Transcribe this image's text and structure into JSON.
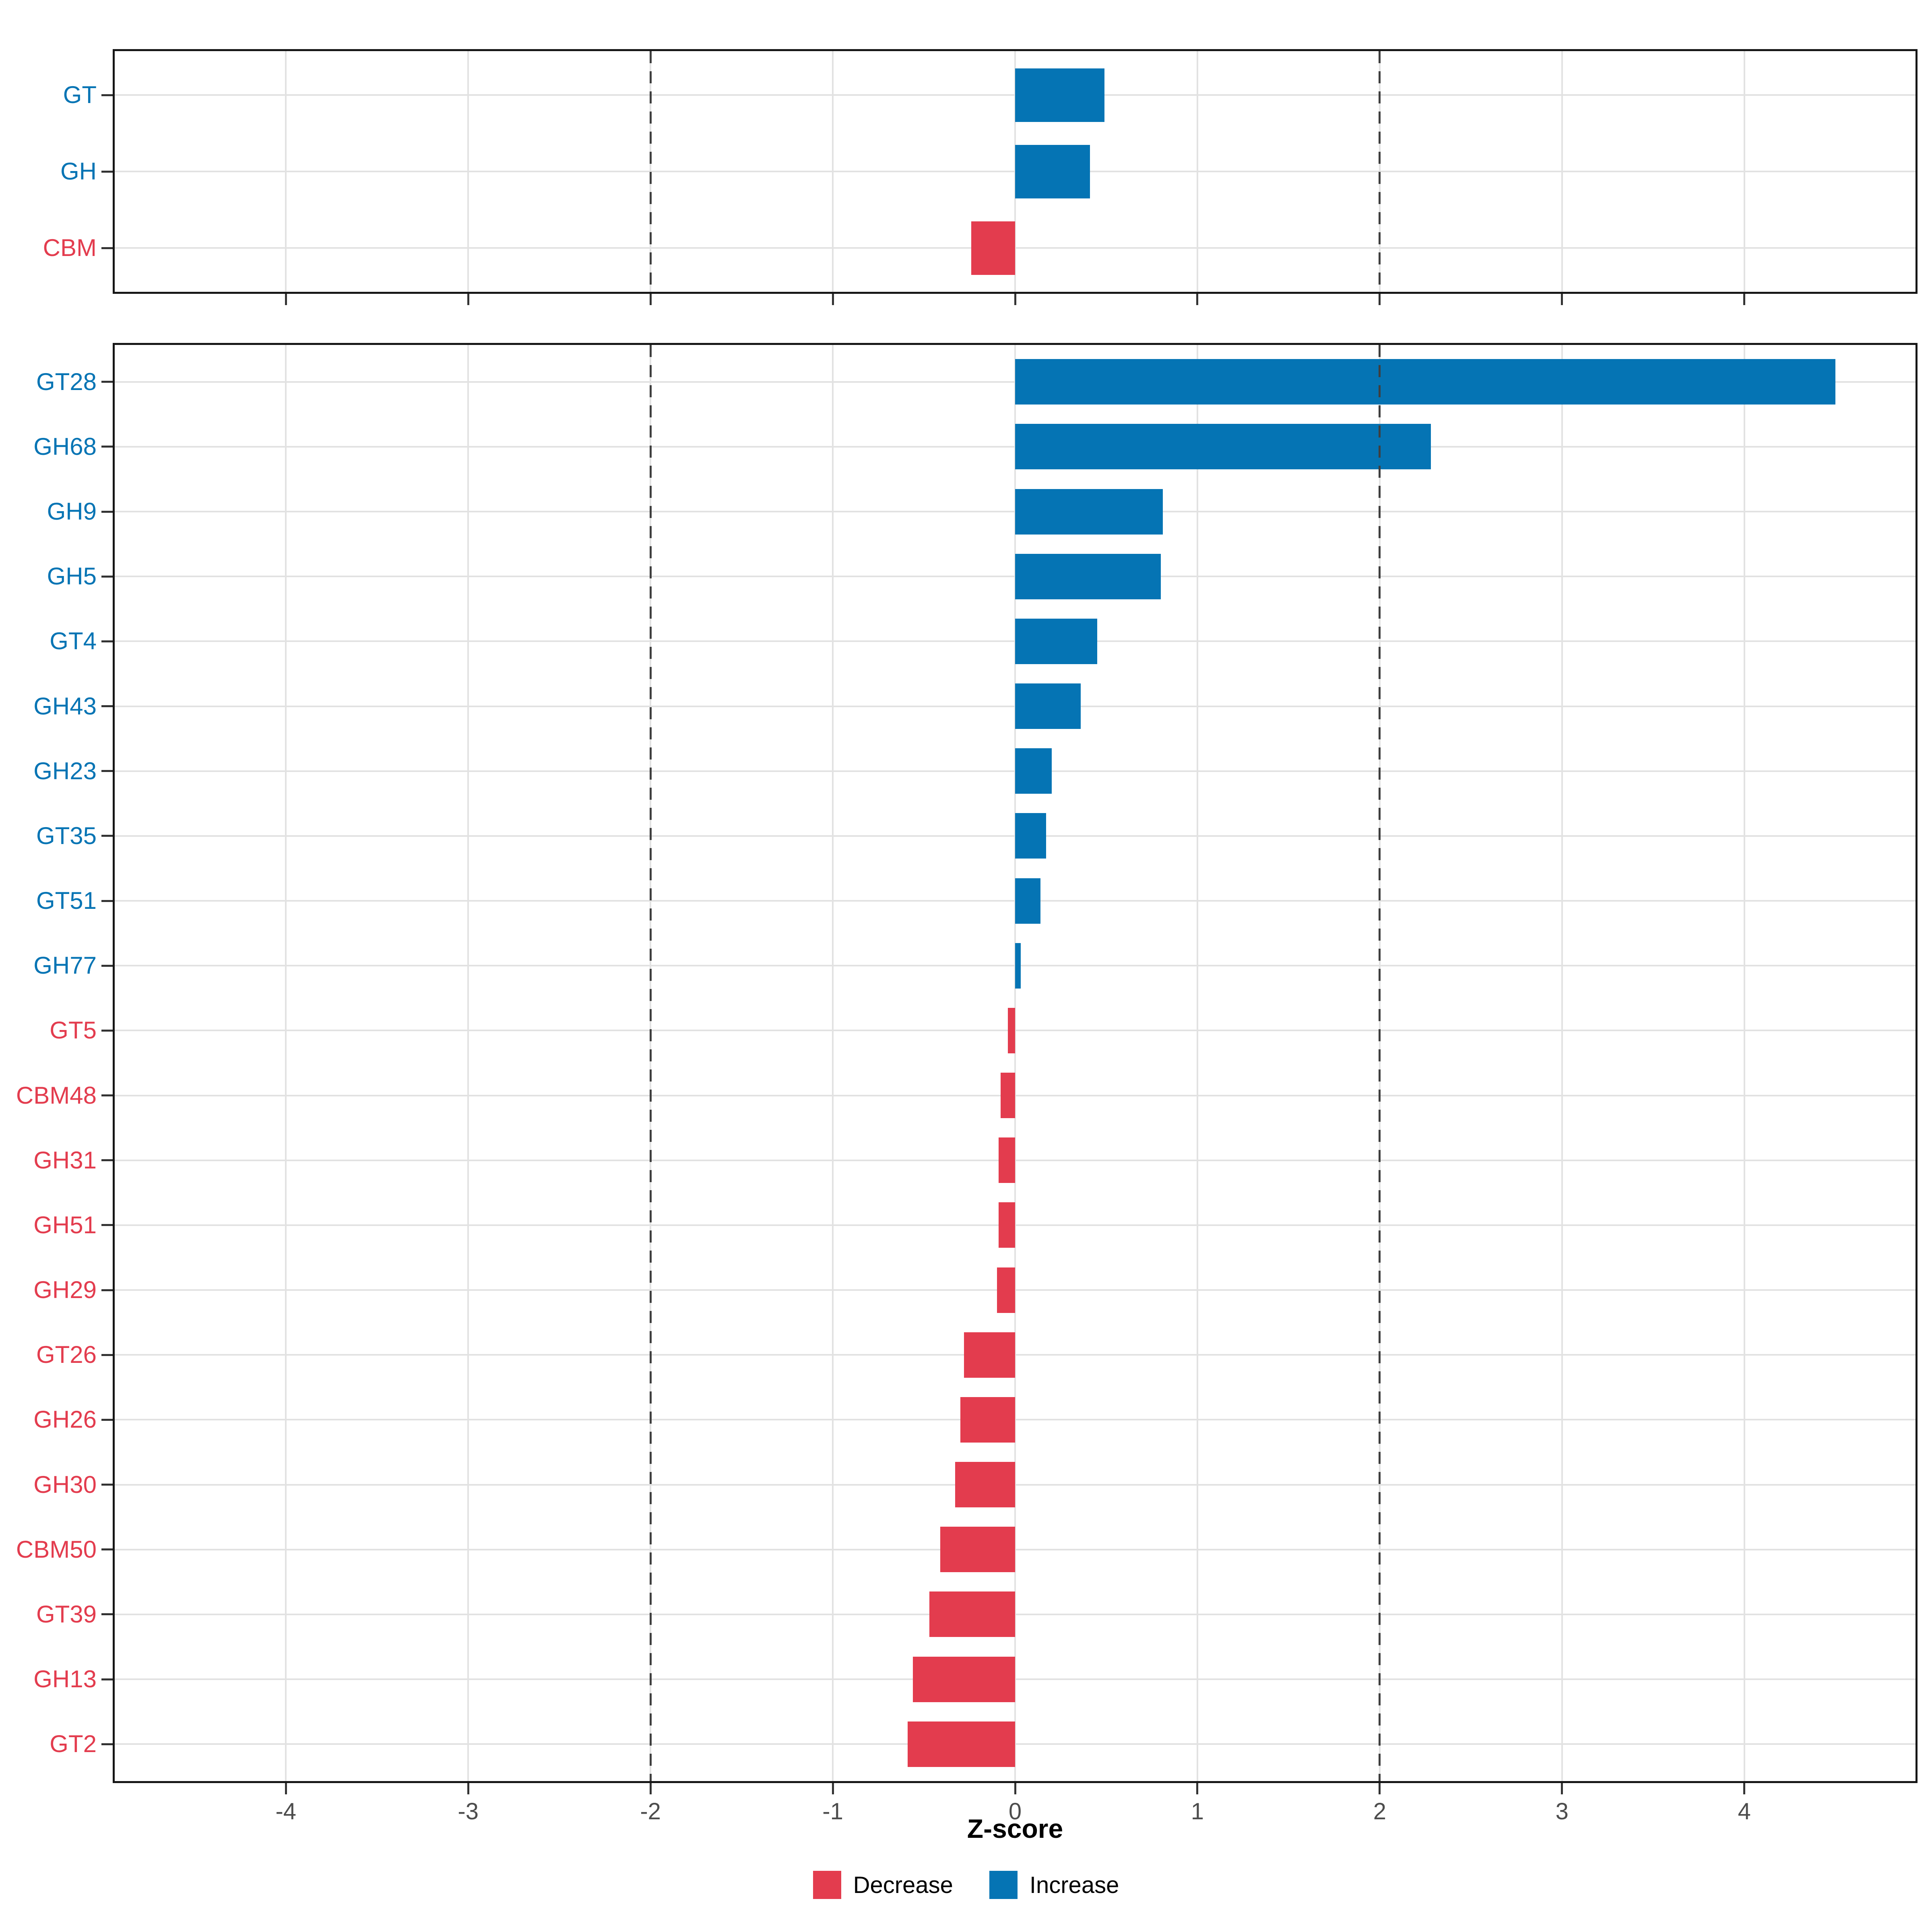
{
  "axis": {
    "xlabel": "Z-score",
    "tick_values": [
      -4,
      -3,
      -2,
      -1,
      0,
      1,
      2,
      3,
      4
    ],
    "tick_labels": [
      "-4",
      "-3",
      "-2",
      "-1",
      "0",
      "1",
      "2",
      "3",
      "4"
    ],
    "xlim": [
      -4.95,
      4.95
    ],
    "dashed_lines": [
      -2,
      2
    ],
    "tick_label_color": "#4D4D4D"
  },
  "legend": {
    "items": [
      {
        "label": "Decrease",
        "color": "#E33C4E"
      },
      {
        "label": "Increase",
        "color": "#0574B4"
      }
    ]
  },
  "colors": {
    "increase": "#0574B4",
    "decrease": "#E33C4E",
    "grid": "#E2E2E2",
    "dashed": "#3F3F3F",
    "panel_border": "#161616",
    "tick": "#333333"
  },
  "chart_data": [
    {
      "type": "bar",
      "orientation": "horizontal",
      "panel": "top",
      "categories": [
        "GT",
        "GH",
        "CBM"
      ],
      "values": [
        0.49,
        0.41,
        -0.24
      ],
      "xlabel": "Z-score",
      "xlim": [
        -4.95,
        4.95
      ],
      "grid": true,
      "annotations": "vertical dashed reference lines at -2 and +2",
      "color_rule": "positive bars = Increase (blue), negative bars = Decrease (red)"
    },
    {
      "type": "bar",
      "orientation": "horizontal",
      "panel": "bottom",
      "categories": [
        "GT28",
        "GH68",
        "GH9",
        "GH5",
        "GT4",
        "GH43",
        "GH23",
        "GT35",
        "GT51",
        "GH77",
        "GT5",
        "CBM48",
        "GH31",
        "GH51",
        "GH29",
        "GT26",
        "GH26",
        "GH30",
        "CBM50",
        "GT39",
        "GH13",
        "GT2"
      ],
      "values": [
        4.5,
        2.28,
        0.81,
        0.8,
        0.45,
        0.36,
        0.2,
        0.17,
        0.14,
        0.03,
        -0.04,
        -0.08,
        -0.09,
        -0.09,
        -0.1,
        -0.28,
        -0.3,
        -0.33,
        -0.41,
        -0.47,
        -0.56,
        -0.59
      ],
      "xlabel": "Z-score",
      "xlim": [
        -4.95,
        4.95
      ],
      "grid": true,
      "annotations": "vertical dashed reference lines at -2 and +2",
      "color_rule": "positive bars = Increase (blue), negative bars = Decrease (red)",
      "legend_position": "bottom"
    }
  ]
}
